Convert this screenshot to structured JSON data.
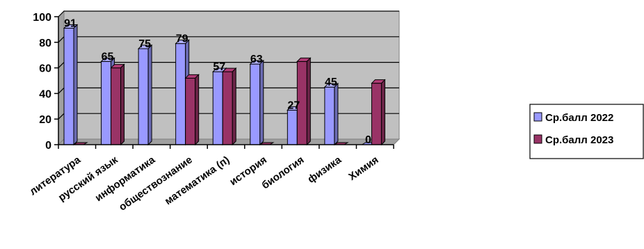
{
  "chart_data": {
    "type": "bar",
    "title": "",
    "xlabel": "",
    "ylabel": "",
    "ylim": [
      0,
      100
    ],
    "y_ticks": [
      "0",
      "20",
      "40",
      "60",
      "80",
      "100"
    ],
    "grid": true,
    "legend_position": "right",
    "categories": [
      "литература",
      "русский язык",
      "информатика",
      "обществознание",
      "математика (п)",
      "история",
      "биология",
      "физика",
      "Химия"
    ],
    "series": [
      {
        "name": "Ср.балл 2022",
        "values": [
          91,
          65,
          75,
          79,
          57,
          63,
          27,
          45,
          0
        ],
        "labels": [
          "91",
          "65",
          "75",
          "79",
          "57",
          "63",
          "27",
          "45",
          "0"
        ],
        "color": "#9999ff"
      },
      {
        "name": "Ср.балл 2023",
        "values": [
          0,
          60,
          null,
          52,
          57,
          0,
          65,
          0,
          48
        ],
        "color": "#993366"
      }
    ],
    "colors": {
      "plot_background": "#c0c0c0",
      "gridline": "#000000"
    }
  }
}
